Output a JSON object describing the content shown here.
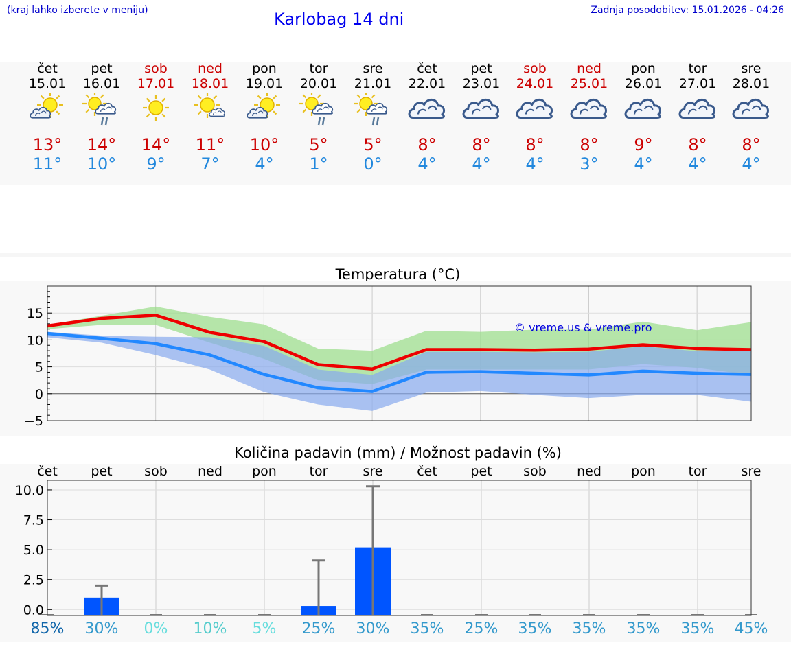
{
  "header": {
    "menu_hint": "(kraj lahko izberete v meniju)",
    "title": "Karlobag 14 dni",
    "updated": "Zadnja posodobitev: 15.01.2026 - 04:26"
  },
  "days": [
    {
      "name": "čet",
      "date": "15.01",
      "weekend": false,
      "icon": "sun-behind-cloud-icon",
      "max": "13°",
      "min": "11°"
    },
    {
      "name": "pet",
      "date": "16.01",
      "weekend": false,
      "icon": "sun-cloud-rain-icon",
      "max": "14°",
      "min": "10°"
    },
    {
      "name": "sob",
      "date": "17.01",
      "weekend": true,
      "icon": "sun-icon",
      "max": "14°",
      "min": "9°"
    },
    {
      "name": "ned",
      "date": "18.01",
      "weekend": true,
      "icon": "sun-small-cloud-icon",
      "max": "11°",
      "min": "7°"
    },
    {
      "name": "pon",
      "date": "19.01",
      "weekend": false,
      "icon": "sun-behind-cloud-icon",
      "max": "10°",
      "min": "4°"
    },
    {
      "name": "tor",
      "date": "20.01",
      "weekend": false,
      "icon": "sun-cloud-rain-icon",
      "max": "5°",
      "min": "1°"
    },
    {
      "name": "sre",
      "date": "21.01",
      "weekend": false,
      "icon": "sun-cloud-rain-icon",
      "max": "5°",
      "min": "0°"
    },
    {
      "name": "čet",
      "date": "22.01",
      "weekend": false,
      "icon": "cloudy-icon",
      "max": "8°",
      "min": "4°"
    },
    {
      "name": "pet",
      "date": "23.01",
      "weekend": false,
      "icon": "cloudy-icon",
      "max": "8°",
      "min": "4°"
    },
    {
      "name": "sob",
      "date": "24.01",
      "weekend": true,
      "icon": "cloudy-icon",
      "max": "8°",
      "min": "4°"
    },
    {
      "name": "ned",
      "date": "25.01",
      "weekend": true,
      "icon": "cloudy-icon",
      "max": "8°",
      "min": "3°"
    },
    {
      "name": "pon",
      "date": "26.01",
      "weekend": false,
      "icon": "cloudy-icon",
      "max": "9°",
      "min": "4°"
    },
    {
      "name": "tor",
      "date": "27.01",
      "weekend": false,
      "icon": "cloudy-icon",
      "max": "8°",
      "min": "4°"
    },
    {
      "name": "sre",
      "date": "28.01",
      "weekend": false,
      "icon": "cloudy-icon",
      "max": "8°",
      "min": "4°"
    }
  ],
  "chart_data": [
    {
      "type": "line",
      "title": "Temperatura (°C)",
      "watermark": "© vreme.us & vreme.pro",
      "ylim": [
        -5,
        20
      ],
      "yticks": [
        -5,
        0,
        5,
        10,
        15
      ],
      "ytick_labels": [
        "−5",
        "0",
        "5",
        "10",
        "15"
      ],
      "x": [
        0,
        1,
        2,
        3,
        4,
        5,
        6,
        7,
        8,
        9,
        10,
        11,
        12,
        13
      ],
      "series": [
        {
          "name": "max",
          "color": "#ee0000",
          "values": [
            12.6,
            14.0,
            14.6,
            11.4,
            9.7,
            5.4,
            4.6,
            8.2,
            8.2,
            8.1,
            8.3,
            9.1,
            8.4,
            8.2
          ]
        },
        {
          "name": "min",
          "color": "#2288ff",
          "values": [
            11.2,
            10.3,
            9.3,
            7.2,
            3.6,
            1.1,
            0.4,
            4.0,
            4.1,
            3.8,
            3.5,
            4.2,
            3.8,
            3.6
          ]
        }
      ],
      "bands": [
        {
          "name": "max-range",
          "color": "#99dd88",
          "lower": [
            12.0,
            12.8,
            12.8,
            9.5,
            6.5,
            2.5,
            1.8,
            4.5,
            4.5,
            4.5,
            4.5,
            5.5,
            4.8,
            3.5
          ],
          "upper": [
            12.8,
            14.5,
            16.2,
            14.3,
            12.9,
            8.4,
            8.0,
            11.7,
            11.5,
            11.9,
            11.9,
            13.4,
            11.8,
            13.3
          ]
        },
        {
          "name": "min-range",
          "color": "#88aaee",
          "lower": [
            10.5,
            9.5,
            7.2,
            4.5,
            0.3,
            -2.0,
            -3.2,
            0.2,
            0.5,
            -0.2,
            -0.8,
            -0.2,
            -0.2,
            -1.5
          ],
          "upper": [
            11.5,
            10.8,
            10.6,
            10.5,
            8.9,
            4.5,
            3.5,
            7.8,
            7.8,
            7.7,
            7.8,
            8.8,
            7.9,
            7.9
          ]
        }
      ]
    },
    {
      "type": "bar",
      "title": "Količina padavin (mm) / Možnost padavin (%)",
      "categories": [
        "čet",
        "pet",
        "sob",
        "ned",
        "pon",
        "tor",
        "sre",
        "čet",
        "pet",
        "sob",
        "ned",
        "pon",
        "tor",
        "sre"
      ],
      "ylim": [
        -0.5,
        10.8
      ],
      "yticks": [
        0,
        2.5,
        5,
        7.5,
        10
      ],
      "ytick_labels": [
        "0.0",
        "2.5",
        "5.0",
        "7.5",
        "10.0"
      ],
      "values": [
        0,
        1.0,
        0,
        0,
        0,
        0.3,
        5.2,
        0,
        0,
        0,
        0,
        0,
        0,
        0
      ],
      "error_high": [
        0,
        2.0,
        0,
        0,
        0,
        4.1,
        10.3,
        0,
        0,
        0,
        0,
        0,
        0,
        0
      ],
      "probability_labels": [
        "85%",
        "30%",
        "0%",
        "10%",
        "5%",
        "25%",
        "30%",
        "35%",
        "25%",
        "35%",
        "35%",
        "35%",
        "35%",
        "45%"
      ],
      "probability_colors": [
        "#1166aa",
        "#3399cc",
        "#66dddd",
        "#55cccc",
        "#66dddd",
        "#3399cc",
        "#3399cc",
        "#3399cc",
        "#3399cc",
        "#3399cc",
        "#3399cc",
        "#3399cc",
        "#3399cc",
        "#3399cc"
      ]
    }
  ]
}
